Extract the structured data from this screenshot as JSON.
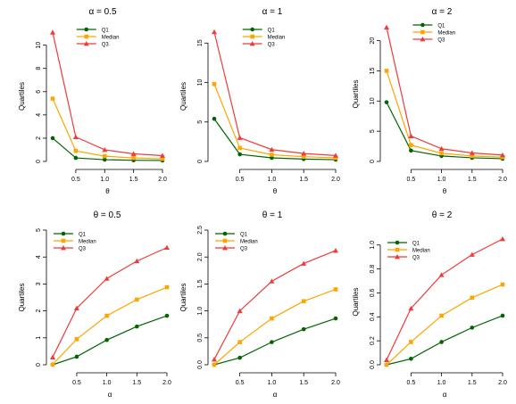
{
  "legend_labels": [
    "Q1",
    "Median",
    "Q3"
  ],
  "colors": {
    "q1": "#006400",
    "median": "#FFA500",
    "q3": "#EE3B3B"
  },
  "chart_data": [
    {
      "type": "line",
      "title": "α = 0.5",
      "xlabel": "θ",
      "ylabel": "Quartiles",
      "x": [
        0.1,
        0.5,
        1.0,
        1.5,
        2.0
      ],
      "xticks": [
        "0.5",
        "1.0",
        "1.5",
        "2.0"
      ],
      "yticks": [
        "0",
        "2",
        "4",
        "6",
        "8",
        "10"
      ],
      "ylim": [
        0,
        11.2
      ],
      "legend": "top-center",
      "series": [
        {
          "name": "Q1",
          "values": [
            2.0,
            0.3,
            0.15,
            0.1,
            0.08
          ]
        },
        {
          "name": "Median",
          "values": [
            5.4,
            0.9,
            0.45,
            0.3,
            0.22
          ]
        },
        {
          "name": "Q3",
          "values": [
            11.1,
            2.1,
            1.0,
            0.65,
            0.5
          ]
        }
      ]
    },
    {
      "type": "line",
      "title": "α = 1",
      "xlabel": "θ",
      "ylabel": "Quartiles",
      "x": [
        0.1,
        0.5,
        1.0,
        1.5,
        2.0
      ],
      "xticks": [
        "0.5",
        "1.0",
        "1.5",
        "2.0"
      ],
      "yticks": [
        "0",
        "5",
        "10",
        "15"
      ],
      "ylim": [
        0,
        16.5
      ],
      "legend": "top-center",
      "series": [
        {
          "name": "Q1",
          "values": [
            5.4,
            0.9,
            0.45,
            0.3,
            0.22
          ]
        },
        {
          "name": "Median",
          "values": [
            9.8,
            1.7,
            0.85,
            0.6,
            0.45
          ]
        },
        {
          "name": "Q3",
          "values": [
            16.4,
            3.0,
            1.5,
            1.0,
            0.75
          ]
        }
      ]
    },
    {
      "type": "line",
      "title": "α = 2",
      "xlabel": "θ",
      "ylabel": "Quartiles",
      "x": [
        0.1,
        0.5,
        1.0,
        1.5,
        2.0
      ],
      "xticks": [
        "0.5",
        "1.0",
        "1.5",
        "2.0"
      ],
      "yticks": [
        "0",
        "5",
        "10",
        "15",
        "20"
      ],
      "ylim": [
        0,
        22.3
      ],
      "legend": "top-center",
      "series": [
        {
          "name": "Q1",
          "values": [
            9.8,
            1.8,
            0.9,
            0.6,
            0.45
          ]
        },
        {
          "name": "Median",
          "values": [
            15.0,
            2.7,
            1.35,
            0.9,
            0.7
          ]
        },
        {
          "name": "Q3",
          "values": [
            22.2,
            4.2,
            2.1,
            1.4,
            1.05
          ]
        }
      ]
    },
    {
      "type": "line",
      "title": "θ = 0.5",
      "xlabel": "α",
      "ylabel": "Quartiles",
      "x": [
        0.1,
        0.5,
        1.0,
        1.5,
        2.0
      ],
      "xticks": [
        "0.5",
        "1.0",
        "1.5",
        "2.0"
      ],
      "yticks": [
        "0",
        "1",
        "2",
        "3",
        "4",
        "5"
      ],
      "ylim": [
        0,
        5
      ],
      "legend": "top-left",
      "series": [
        {
          "name": "Q1",
          "values": [
            0.0,
            0.3,
            0.92,
            1.42,
            1.82
          ]
        },
        {
          "name": "Median",
          "values": [
            0.01,
            0.95,
            1.82,
            2.42,
            2.88
          ]
        },
        {
          "name": "Q3",
          "values": [
            0.28,
            2.1,
            3.2,
            3.85,
            4.35
          ]
        }
      ]
    },
    {
      "type": "line",
      "title": "θ = 1",
      "xlabel": "α",
      "ylabel": "Quartiles",
      "x": [
        0.1,
        0.5,
        1.0,
        1.5,
        2.0
      ],
      "xticks": [
        "0.5",
        "1.0",
        "1.5",
        "2.0"
      ],
      "yticks": [
        "0.0",
        "0.5",
        "1.0",
        "1.5",
        "2.0",
        "2.5"
      ],
      "ylim": [
        0,
        2.5
      ],
      "legend": "top-left",
      "series": [
        {
          "name": "Q1",
          "values": [
            0.0,
            0.13,
            0.42,
            0.66,
            0.86
          ]
        },
        {
          "name": "Median",
          "values": [
            0.0,
            0.42,
            0.86,
            1.18,
            1.4
          ]
        },
        {
          "name": "Q3",
          "values": [
            0.1,
            1.0,
            1.55,
            1.88,
            2.12
          ]
        }
      ]
    },
    {
      "type": "line",
      "title": "θ = 2",
      "xlabel": "α",
      "ylabel": "Quartiles",
      "x": [
        0.1,
        0.5,
        1.0,
        1.5,
        2.0
      ],
      "xticks": [
        "0.5",
        "1.0",
        "1.5",
        "2.0"
      ],
      "yticks": [
        "0.0",
        "0.2",
        "0.4",
        "0.6",
        "0.8",
        "1.0"
      ],
      "ylim": [
        0,
        1.05
      ],
      "legend": "top-left",
      "series": [
        {
          "name": "Q1",
          "values": [
            0.0,
            0.05,
            0.19,
            0.31,
            0.41
          ]
        },
        {
          "name": "Median",
          "values": [
            0.0,
            0.19,
            0.41,
            0.56,
            0.67
          ]
        },
        {
          "name": "Q3",
          "values": [
            0.04,
            0.47,
            0.75,
            0.92,
            1.05
          ]
        }
      ]
    }
  ]
}
